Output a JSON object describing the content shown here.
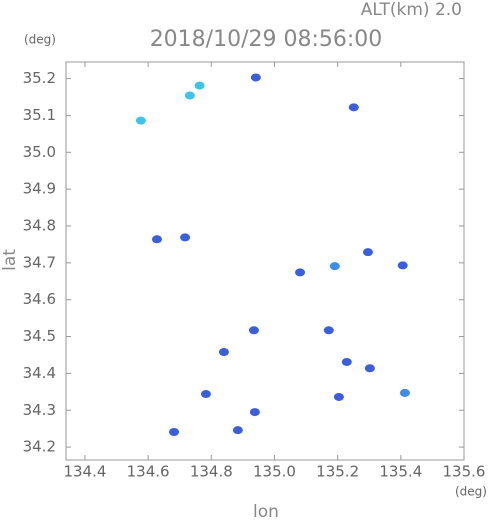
{
  "chart_data": {
    "type": "scatter",
    "title": "2018/10/29 08:56:00",
    "subtitle": "ALT(km) 2.0",
    "x_label": "lon",
    "y_label": "lat",
    "x_unit": "(deg)",
    "y_unit": "(deg)",
    "x": [
      134.577,
      134.732,
      134.763,
      134.941,
      135.251,
      134.628,
      134.717,
      135.081,
      135.191,
      135.296,
      135.406,
      134.84,
      134.935,
      135.172,
      135.229,
      135.302,
      134.783,
      134.938,
      135.204,
      135.413,
      134.682,
      134.884
    ],
    "values": [
      35.086,
      35.154,
      35.181,
      35.203,
      35.122,
      34.764,
      34.769,
      34.674,
      34.691,
      34.729,
      34.693,
      34.458,
      34.517,
      34.517,
      34.431,
      34.414,
      34.344,
      34.295,
      34.336,
      34.347,
      34.241,
      34.246
    ],
    "colors": [
      "#3cc4ea",
      "#3cc4ea",
      "#3cc4ea",
      "#3b5fdc",
      "#3b5fdc",
      "#3b5fdc",
      "#3b5fdc",
      "#3b5fdc",
      "#3c8ee6",
      "#3b5fdc",
      "#3b5fdc",
      "#3b5fdc",
      "#3b5fdc",
      "#3b5fdc",
      "#3b5fdc",
      "#3b5fdc",
      "#3b5fdc",
      "#3b5fdc",
      "#3b5fdc",
      "#3b8ee6",
      "#3b5fdc",
      "#3b5fdc"
    ],
    "xlim": [
      134.34,
      135.6
    ],
    "ylim": [
      34.165,
      35.245
    ],
    "xticks": [
      {
        "value": 134.4,
        "label": "134.4"
      },
      {
        "value": 134.6,
        "label": "134.6"
      },
      {
        "value": 134.8,
        "label": "134.8"
      },
      {
        "value": 135.0,
        "label": "135.0"
      },
      {
        "value": 135.2,
        "label": "135.2"
      },
      {
        "value": 135.4,
        "label": "135.4"
      },
      {
        "value": 135.6,
        "label": "135.6"
      }
    ],
    "yticks": [
      {
        "value": 34.2,
        "label": "34.2"
      },
      {
        "value": 34.3,
        "label": "34.3"
      },
      {
        "value": 34.4,
        "label": "34.4"
      },
      {
        "value": 34.5,
        "label": "34.5"
      },
      {
        "value": 34.6,
        "label": "34.6"
      },
      {
        "value": 34.7,
        "label": "34.7"
      },
      {
        "value": 34.8,
        "label": "34.8"
      },
      {
        "value": 34.9,
        "label": "34.9"
      },
      {
        "value": 35.0,
        "label": "35.0"
      },
      {
        "value": 35.1,
        "label": "35.1"
      },
      {
        "value": 35.2,
        "label": "35.2"
      }
    ]
  }
}
